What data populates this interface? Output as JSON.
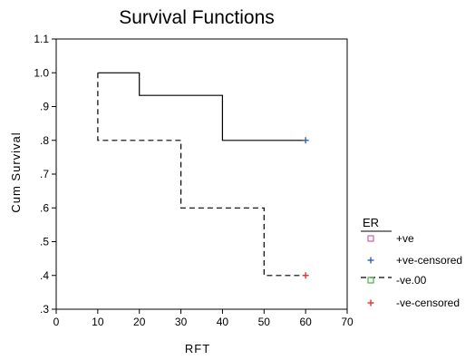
{
  "chart_data": {
    "type": "line",
    "title": "Survival Functions",
    "xlabel": "RFT",
    "ylabel": "Cum Survival",
    "xlim": [
      0,
      70
    ],
    "ylim": [
      0.3,
      1.1
    ],
    "x_ticks": [
      "0",
      "10",
      "20",
      "30",
      "40",
      "50",
      "60",
      "70"
    ],
    "y_ticks": [
      ".3",
      ".4",
      ".5",
      ".6",
      ".7",
      ".8",
      ".9",
      "1.0",
      "1.1"
    ],
    "grid": false,
    "legend_position": "right",
    "legend_title": "ER",
    "legend": [
      {
        "label": "+ve",
        "marker": "square",
        "color": "#d24f9a"
      },
      {
        "label": "+ve-censored",
        "marker": "plus",
        "color": "#3a5fb0"
      },
      {
        "label": "-ve.00",
        "marker": "square",
        "color": "#3aaa3a"
      },
      {
        "label": "-ve-censored",
        "marker": "plus",
        "color": "#e0362c"
      }
    ],
    "series": [
      {
        "style": "solid",
        "color": "#000000",
        "step_points": [
          [
            10,
            1.0
          ],
          [
            20,
            1.0
          ],
          [
            20,
            0.933
          ],
          [
            40,
            0.933
          ],
          [
            40,
            0.8
          ],
          [
            60,
            0.8
          ]
        ],
        "censored": [
          [
            60,
            0.8
          ]
        ],
        "censor_color": "#3a5fb0"
      },
      {
        "style": "dashed",
        "color": "#000000",
        "step_points": [
          [
            10,
            1.0
          ],
          [
            10,
            0.8
          ],
          [
            30,
            0.8
          ],
          [
            30,
            0.6
          ],
          [
            50,
            0.6
          ],
          [
            50,
            0.4
          ],
          [
            60,
            0.4
          ]
        ],
        "censored": [
          [
            60,
            0.4
          ]
        ],
        "censor_color": "#e0362c"
      }
    ]
  }
}
